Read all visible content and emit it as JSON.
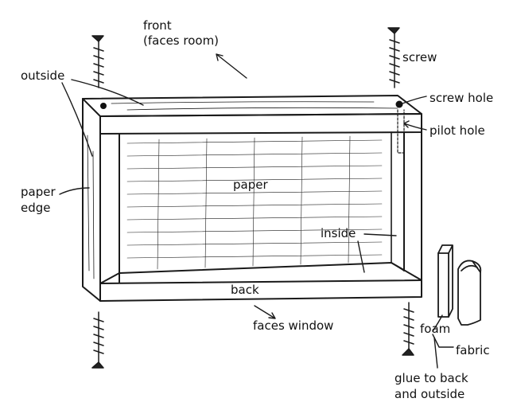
{
  "labels": {
    "front": "front",
    "faces_room": "(faces room)",
    "screw": "screw",
    "outside": "outside",
    "screw_hole": "screw hole",
    "pilot_hole": "pilot hole",
    "paper": "paper",
    "paper_edge_1": "paper",
    "paper_edge_2": "edge",
    "inside": "inside",
    "back": "back",
    "faces_window": "faces window",
    "foam": "foam",
    "fabric": "fabric",
    "glue_1": "glue to back",
    "glue_2": "and outside"
  }
}
